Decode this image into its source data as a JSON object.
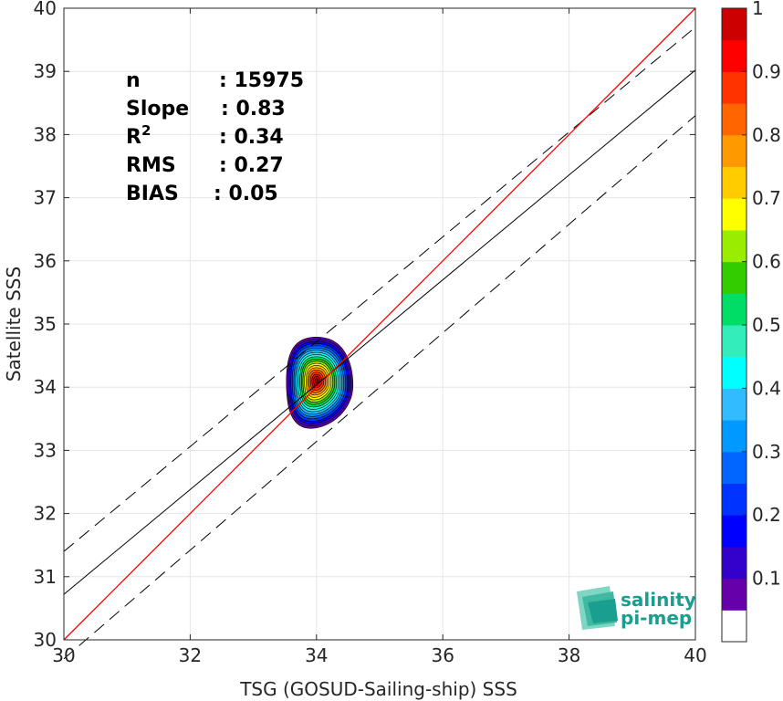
{
  "chart_data": {
    "type": "heatmap",
    "xlabel": "TSG (GOSUD-Sailing-ship) SSS",
    "ylabel": "Satellite SSS",
    "xlim": [
      30,
      40
    ],
    "ylim": [
      30,
      40
    ],
    "x_ticks": [
      "30",
      "32",
      "34",
      "36",
      "38",
      "40"
    ],
    "y_ticks": [
      "30",
      "31",
      "32",
      "33",
      "34",
      "35",
      "36",
      "37",
      "38",
      "39",
      "40"
    ],
    "grid": true,
    "density_center": [
      34.0,
      34.1
    ],
    "regression_line": {
      "slope": 0.83,
      "x": [
        30,
        40
      ],
      "y": [
        30.72,
        39.02
      ]
    },
    "rms_bounds": {
      "upper": {
        "x": [
          30,
          40
        ],
        "y": [
          31.4,
          39.7
        ]
      },
      "lower": {
        "x": [
          30,
          40
        ],
        "y": [
          29.7,
          38.3
        ]
      }
    },
    "identity_line": {
      "x": [
        30,
        40
      ],
      "y": [
        30,
        40
      ]
    },
    "stats": [
      {
        "label": "n",
        "value": ": 15975"
      },
      {
        "label": "Slope",
        "value": ": 0.83"
      },
      {
        "label": "R",
        "sup": "2",
        "value": ": 0.34"
      },
      {
        "label": "RMS",
        "value": ": 0.27"
      },
      {
        "label": "BIAS",
        "value": ": 0.05"
      }
    ],
    "colorbar": {
      "ticks": [
        "0.1",
        "0.2",
        "0.3",
        "0.4",
        "0.5",
        "0.6",
        "0.7",
        "0.8",
        "0.9",
        "1"
      ],
      "levels": [
        0,
        0.05,
        0.1,
        0.15,
        0.2,
        0.25,
        0.3,
        0.35,
        0.4,
        0.45,
        0.5,
        0.55,
        0.6,
        0.65,
        0.7,
        0.75,
        0.8,
        0.85,
        0.9,
        0.95,
        1
      ],
      "colors": [
        "#ffffff",
        "#6600aa",
        "#3300cc",
        "#0000ff",
        "#0033ff",
        "#0066ff",
        "#0099ff",
        "#33bbff",
        "#00ffff",
        "#33eebb",
        "#00dd66",
        "#33cc00",
        "#99ee00",
        "#ffff00",
        "#ffcc00",
        "#ff9900",
        "#ff6600",
        "#ff3300",
        "#ff0000",
        "#cc0000",
        "#880000"
      ]
    },
    "colors": {
      "identity": "#ff0000",
      "regression": "#000000",
      "bounds": "#000000"
    }
  },
  "logo": {
    "line1": "salinity",
    "line2": "pi-mep"
  }
}
